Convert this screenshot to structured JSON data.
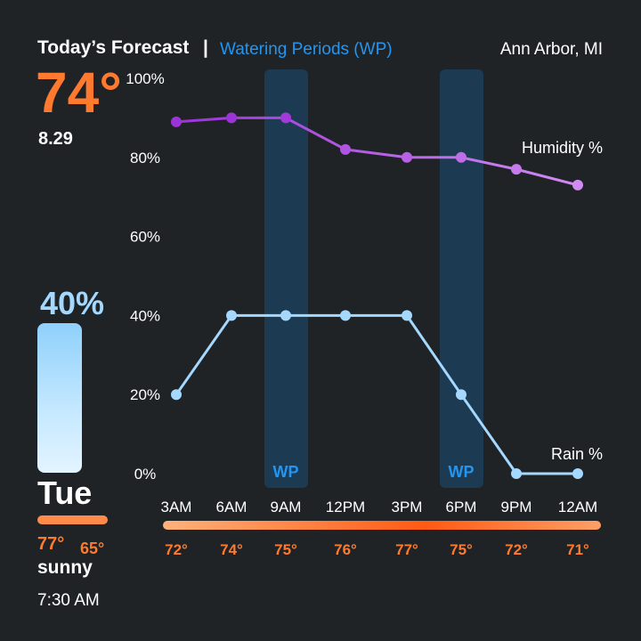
{
  "header": {
    "title": "Today’s Forecast",
    "separator": "|",
    "subtitle": "Watering Periods (WP)",
    "location": "Ann Arbor, MI"
  },
  "current": {
    "temperature": "74°",
    "pressure": "8.29",
    "rain_chance": "40%",
    "rain_chance_value": 40,
    "day": "Tue",
    "high": "77°",
    "low": "65°",
    "condition": "sunny",
    "time": "7:30 AM"
  },
  "colors": {
    "accent_orange": "#ff7a2e",
    "humidity_line": "#a94de0",
    "rain_line": "#a5d8ff",
    "watering_band": "#1c3a52",
    "wp_label": "#2196f3",
    "background": "#1f2326"
  },
  "chart_data": {
    "type": "line",
    "x": [
      "3AM",
      "6AM",
      "9AM",
      "12PM",
      "3PM",
      "6PM",
      "9PM",
      "12AM"
    ],
    "y_ticks": [
      "0%",
      "20%",
      "40%",
      "60%",
      "80%",
      "100%"
    ],
    "ylim": [
      0,
      100
    ],
    "series": [
      {
        "name": "Humidity %",
        "values": [
          89,
          90,
          90,
          82,
          80,
          80,
          77,
          73
        ]
      },
      {
        "name": "Rain %",
        "values": [
          20,
          40,
          40,
          40,
          40,
          20,
          0,
          0
        ]
      }
    ],
    "watering_periods": [
      {
        "label": "WP",
        "at": "9AM"
      },
      {
        "label": "WP",
        "at": "6PM"
      }
    ],
    "hourly_temps": [
      "72°",
      "74°",
      "75°",
      "76°",
      "77°",
      "75°",
      "72°",
      "71°"
    ],
    "grid": false
  }
}
